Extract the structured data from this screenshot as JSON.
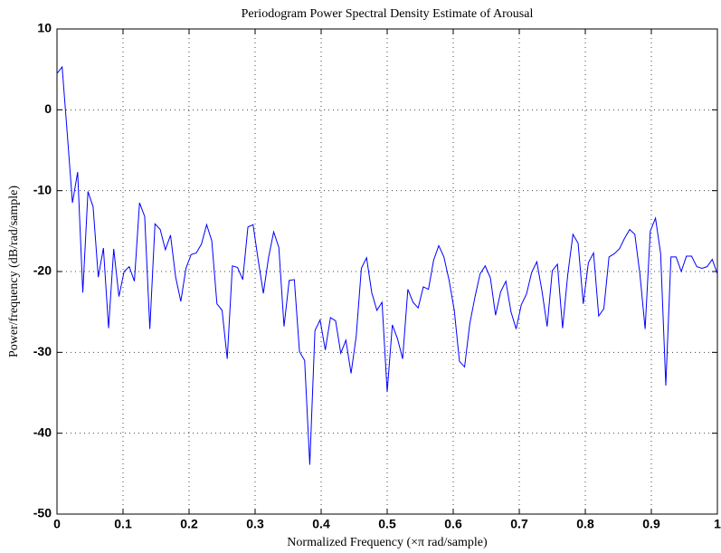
{
  "chart_data": {
    "type": "line",
    "title": "Periodogram Power Spectral Density Estimate of Arousal",
    "x_label": "Normalized Frequency  (×π rad/sample)",
    "y_label": "Power/frequency (dB/rad/sample)",
    "color": "#0000ff",
    "grid": true,
    "xlim": [
      0,
      1
    ],
    "xticks": [
      0,
      0.1,
      0.2,
      0.3,
      0.4,
      0.5,
      0.6,
      0.7,
      0.8,
      0.9,
      1
    ],
    "ylim": [
      -50,
      10
    ],
    "yticks": [
      10,
      0,
      -10,
      -20,
      -30,
      -40,
      -50
    ],
    "x": [
      0,
      0.0078,
      0.0156,
      0.0234,
      0.0313,
      0.0391,
      0.0469,
      0.0547,
      0.0625,
      0.0703,
      0.0781,
      0.0859,
      0.0938,
      0.1016,
      0.1094,
      0.1172,
      0.125,
      0.1328,
      0.1406,
      0.1484,
      0.1563,
      0.1641,
      0.1719,
      0.1797,
      0.1875,
      0.1953,
      0.2031,
      0.2109,
      0.2188,
      0.2266,
      0.2344,
      0.2422,
      0.25,
      0.2578,
      0.2656,
      0.2734,
      0.2813,
      0.2891,
      0.2969,
      0.3047,
      0.3125,
      0.3203,
      0.3281,
      0.3359,
      0.3438,
      0.3516,
      0.3594,
      0.3672,
      0.375,
      0.3828,
      0.3906,
      0.3984,
      0.4063,
      0.4141,
      0.4219,
      0.4297,
      0.4375,
      0.4453,
      0.4531,
      0.4609,
      0.4688,
      0.4766,
      0.4844,
      0.4922,
      0.5,
      0.5078,
      0.5156,
      0.5234,
      0.5313,
      0.5391,
      0.5469,
      0.5547,
      0.5625,
      0.5703,
      0.5781,
      0.5859,
      0.5938,
      0.6016,
      0.6094,
      0.6172,
      0.625,
      0.6328,
      0.6406,
      0.6484,
      0.6563,
      0.6641,
      0.6719,
      0.6797,
      0.6875,
      0.6953,
      0.7031,
      0.7109,
      0.7188,
      0.7266,
      0.7344,
      0.7422,
      0.75,
      0.7578,
      0.7656,
      0.7734,
      0.7813,
      0.7891,
      0.7969,
      0.8047,
      0.8125,
      0.8203,
      0.8281,
      0.8359,
      0.8438,
      0.8516,
      0.8594,
      0.8672,
      0.875,
      0.8828,
      0.8906,
      0.8984,
      0.9063,
      0.9141,
      0.9219,
      0.9297,
      0.9375,
      0.9453,
      0.9531,
      0.9609,
      0.9688,
      0.9766,
      0.9844,
      0.9922,
      1
    ],
    "values": [
      4.5,
      5.3,
      -3,
      -11.5,
      -7.7,
      -22.6,
      -10.1,
      -12,
      -20.7,
      -17.1,
      -27,
      -17.2,
      -23.1,
      -20,
      -19.4,
      -21.2,
      -11.5,
      -13.2,
      -27.1,
      -14.1,
      -14.8,
      -17.3,
      -15.5,
      -20.7,
      -23.7,
      -19.6,
      -17.9,
      -17.7,
      -16.6,
      -14.2,
      -16.2,
      -24,
      -24.8,
      -30.8,
      -19.3,
      -19.5,
      -21,
      -14.5,
      -14.2,
      -18.6,
      -22.7,
      -18.3,
      -15.1,
      -17,
      -26.8,
      -21.1,
      -21,
      -29.9,
      -31,
      -43.9,
      -27.3,
      -26,
      -29.7,
      -25.7,
      -26.1,
      -30.1,
      -28.5,
      -32.6,
      -28,
      -19.6,
      -18.3,
      -22.6,
      -24.8,
      -23.8,
      -34.9,
      -26.6,
      -28.3,
      -30.8,
      -22.2,
      -23.8,
      -24.5,
      -21.9,
      -22.2,
      -18.6,
      -16.8,
      -18.2,
      -21.1,
      -24.8,
      -31.1,
      -31.8,
      -26.5,
      -23.2,
      -20.3,
      -19.3,
      -20.8,
      -25.4,
      -22.5,
      -21.2,
      -25,
      -27.1,
      -24.1,
      -22.8,
      -20.1,
      -18.8,
      -22.4,
      -26.8,
      -19.9,
      -19.1,
      -27,
      -20.4,
      -15.4,
      -16.5,
      -24,
      -18.9,
      -17.7,
      -25.5,
      -24.6,
      -18.2,
      -17.8,
      -17.2,
      -15.9,
      -14.8,
      -15.4,
      -20.4,
      -27.1,
      -15,
      -13.4,
      -17.8,
      -34.1,
      -18.2,
      -18.2,
      -20,
      -18.1,
      -18.1,
      -19.4,
      -19.6,
      -19.4,
      -18.5,
      -20.3
    ]
  }
}
